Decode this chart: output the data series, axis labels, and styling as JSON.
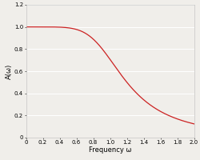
{
  "title": "",
  "xlabel": "Frequency ω",
  "ylabel": "A(ω)",
  "xlim": [
    0,
    2.0
  ],
  "ylim": [
    0,
    1.2
  ],
  "xticks": [
    0,
    0.2,
    0.4,
    0.6,
    0.8,
    1.0,
    1.2,
    1.4,
    1.6,
    1.8,
    2.0
  ],
  "yticks": [
    0,
    0.2,
    0.4,
    0.6,
    0.8,
    1.0,
    1.2
  ],
  "line_color": "#cc2222",
  "line_width": 0.9,
  "background_color": "#f0eeea",
  "grid_color": "#ffffff",
  "grid_linewidth": 0.7,
  "xlabel_fontsize": 6,
  "ylabel_fontsize": 6,
  "tick_fontsize": 5
}
